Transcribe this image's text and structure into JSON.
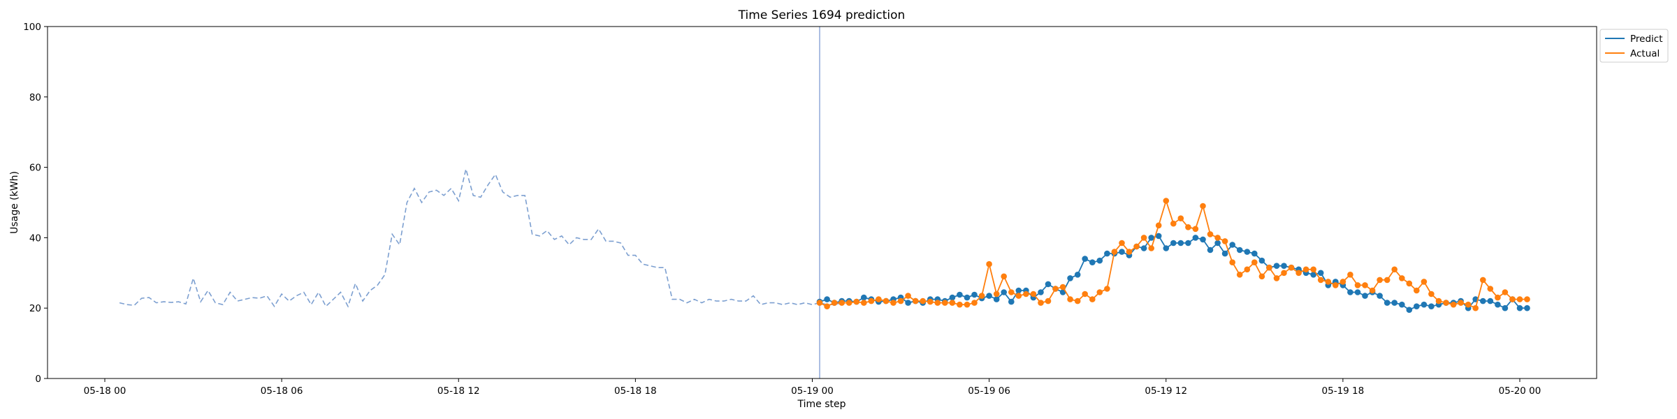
{
  "chart_data": {
    "type": "line",
    "title": "Time Series 1694 prediction",
    "xlabel": "Time step",
    "ylabel": "Usage (kWh)",
    "ylim": [
      0,
      100
    ],
    "y_ticks": [
      0,
      20,
      40,
      60,
      80,
      100
    ],
    "x_ticks": [
      "05-18 00",
      "05-18 06",
      "05-18 12",
      "05-18 18",
      "05-19 00",
      "05-19 06",
      "05-19 12",
      "05-19 18",
      "05-20 00"
    ],
    "x_start": "05-18 00:00",
    "step_minutes": 15,
    "grid": false,
    "legend_position": "top-right",
    "prediction_start": "05-19 00:15",
    "colors": {
      "history": "#7c9fd0",
      "predict": "#1f77b4",
      "actual": "#ff7f0e",
      "divider": "#8fa8d8"
    },
    "series": [
      {
        "name": "",
        "role": "history",
        "start": "05-18 00:30",
        "values": [
          21.5,
          21.0,
          20.8,
          22.8,
          23.0,
          21.5,
          21.8,
          21.6,
          21.8,
          21.2,
          28.5,
          21.8,
          25.0,
          21.5,
          21.0,
          24.5,
          22.0,
          22.5,
          23.0,
          22.8,
          23.5,
          20.5,
          24.0,
          22.0,
          23.5,
          24.5,
          21.0,
          24.5,
          20.5,
          22.5,
          24.5,
          20.5,
          27.0,
          22.0,
          25.0,
          26.5,
          29.5,
          41.0,
          38.0,
          50.0,
          54.0,
          50.0,
          53.0,
          53.5,
          52.0,
          54.0,
          50.5,
          59.5,
          52.0,
          51.5,
          55.0,
          58.0,
          53.0,
          51.5,
          52.0,
          52.0,
          41.0,
          40.5,
          42.0,
          39.5,
          40.5,
          38.0,
          40.0,
          39.5,
          39.5,
          42.5,
          39.0,
          39.0,
          38.5,
          35.0,
          35.0,
          32.5,
          32.0,
          31.5,
          31.5,
          22.5,
          22.5,
          21.5,
          22.5,
          21.5,
          22.5,
          22.0,
          22.0,
          22.5,
          22.0,
          22.0,
          23.5,
          21.0,
          21.5,
          21.5,
          21.0,
          21.5,
          21.0,
          21.5,
          21.0,
          21.5,
          21.0,
          21.0,
          21.5
        ]
      },
      {
        "name": "Predict",
        "role": "predict",
        "start": "05-19 00:15",
        "values": [
          21.8,
          22.5,
          21.5,
          22.0,
          22.0,
          21.8,
          23.0,
          22.5,
          21.8,
          22.0,
          22.5,
          23.0,
          21.5,
          22.0,
          21.5,
          22.5,
          22.5,
          22.0,
          23.0,
          23.8,
          23.0,
          23.8,
          22.8,
          23.5,
          22.5,
          24.5,
          21.8,
          25.0,
          25.0,
          23.0,
          24.5,
          26.8,
          25.5,
          24.5,
          28.5,
          29.5,
          34.0,
          33.0,
          33.5,
          35.5,
          35.5,
          36.0,
          35.0,
          37.5,
          37.0,
          40.0,
          40.5,
          37.0,
          38.5,
          38.5,
          38.5,
          40.0,
          39.5,
          36.5,
          38.5,
          35.5,
          38.0,
          36.5,
          36.0,
          35.5,
          33.5,
          31.5,
          32.0,
          32.0,
          31.5,
          31.0,
          30.0,
          29.5,
          30.0,
          26.5,
          27.5,
          26.5,
          24.5,
          24.5,
          23.5,
          24.5,
          23.5,
          21.5,
          21.5,
          21.0,
          19.5,
          20.5,
          21.0,
          20.5,
          21.0,
          21.5,
          21.5,
          22.0,
          20.0,
          22.5,
          22.0,
          22.0,
          21.0,
          20.0,
          22.5,
          20.0,
          20.0
        ]
      },
      {
        "name": "Actual",
        "role": "actual",
        "start": "05-19 00:15",
        "values": [
          21.5,
          20.5,
          21.5,
          21.5,
          21.5,
          21.8,
          21.5,
          22.0,
          22.5,
          22.0,
          21.5,
          22.0,
          23.5,
          22.0,
          22.0,
          21.8,
          21.5,
          21.5,
          21.5,
          21.0,
          21.0,
          21.5,
          23.5,
          32.5,
          24.0,
          29.0,
          24.5,
          23.5,
          24.0,
          24.0,
          21.5,
          22.0,
          25.5,
          26.0,
          22.5,
          22.0,
          24.0,
          22.5,
          24.5,
          25.5,
          36.0,
          38.5,
          36.0,
          37.5,
          40.0,
          37.0,
          43.5,
          50.5,
          44.0,
          45.5,
          43.0,
          42.5,
          49.0,
          41.0,
          40.0,
          39.0,
          33.0,
          29.5,
          31.0,
          33.0,
          29.0,
          31.5,
          28.5,
          30.0,
          31.5,
          30.0,
          31.0,
          31.0,
          28.0,
          27.5,
          26.5,
          27.5,
          29.5,
          26.5,
          26.5,
          25.0,
          28.0,
          28.0,
          31.0,
          28.5,
          27.0,
          25.0,
          27.5,
          24.0,
          22.0,
          21.5,
          21.0,
          21.5,
          21.0,
          20.0,
          28.0,
          25.5,
          23.0,
          24.5,
          22.5,
          22.5,
          22.5
        ]
      }
    ]
  }
}
